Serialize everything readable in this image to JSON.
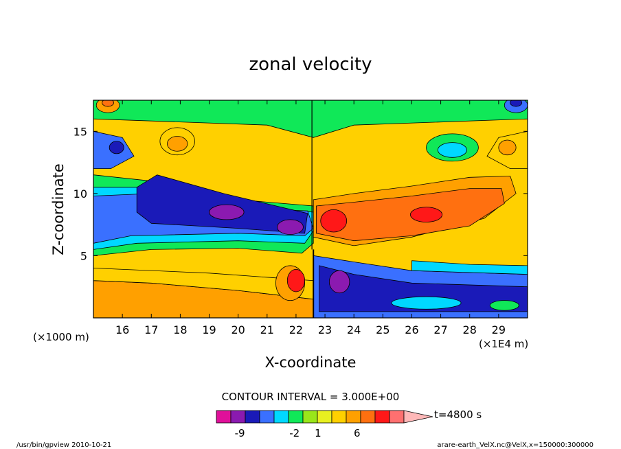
{
  "chart_data": {
    "type": "heatmap",
    "title": "zonal velocity",
    "xlabel": "X-coordinate",
    "ylabel": "Z-coordinate",
    "x_unit_left": "(×1000 m)",
    "x_unit_right": "(×1E4 m)",
    "x_ticks": [
      16,
      17,
      18,
      19,
      20,
      21,
      22,
      23,
      24,
      25,
      26,
      27,
      28,
      29
    ],
    "y_ticks": [
      5,
      10,
      15
    ],
    "xlim": [
      15.0,
      30.0
    ],
    "ylim": [
      0.0,
      17.5
    ],
    "contour_interval_text": "CONTOUR INTERVAL = 3.000E+00",
    "time_label": "t=4800 s",
    "colorbar_labels": [
      {
        "text": "-9",
        "value": -9
      },
      {
        "text": "-2",
        "value": -2
      },
      {
        "text": "1",
        "value": 1
      },
      {
        "text": "6",
        "value": 6
      }
    ],
    "colorbar_colors": [
      "#e0109a",
      "#8b1ab0",
      "#1a1ab8",
      "#3a70ff",
      "#00d8ff",
      "#10e858",
      "#9ae61a",
      "#e8f020",
      "#ffd000",
      "#ffa000",
      "#ff7010",
      "#ff1818",
      "#ff7070",
      "#ffb8b8"
    ]
  },
  "footer": {
    "left": "/usr/bin/gpview  2010-10-21",
    "right": "arare-earth_VelX.nc@VelX,x=150000:300000"
  }
}
